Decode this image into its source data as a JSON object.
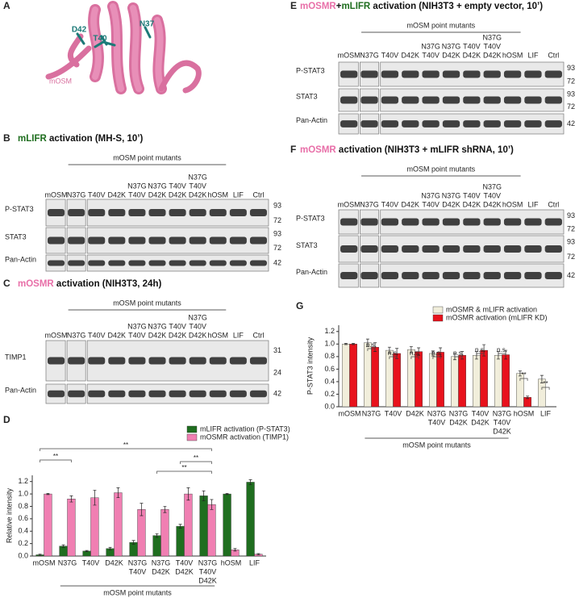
{
  "panel_labels": [
    "A",
    "B",
    "C",
    "D",
    "E",
    "F",
    "G"
  ],
  "structure": {
    "residues": [
      "D42",
      "T40",
      "N37"
    ],
    "protein": "mOSM"
  },
  "blots": [
    {
      "title": [
        {
          "text": "mLIFR",
          "color": "#1f6e1f"
        },
        {
          "text": " activation (MH-S, 10’)"
        }
      ],
      "group_label": "mOSM point mutants",
      "lanes": [
        [
          "mOSM"
        ],
        [
          "N37G"
        ],
        [
          "T40V"
        ],
        [
          "D42K"
        ],
        [
          "N37G",
          "T40V"
        ],
        [
          "N37G",
          "D42K"
        ],
        [
          "T40V",
          "D42K"
        ],
        [
          "N37G",
          "T40V",
          "D42K"
        ],
        [
          "hOSM"
        ],
        [
          "LIF"
        ],
        [
          "Ctrl"
        ]
      ],
      "rows": [
        {
          "name": "P-STAT3",
          "markers": [
            93,
            72
          ]
        },
        {
          "name": "STAT3",
          "markers": [
            93,
            72
          ]
        },
        {
          "name": "Pan-Actin",
          "markers": [
            42
          ]
        }
      ]
    },
    {
      "title": [
        {
          "text": "mOSMR",
          "color": "#e86fa8"
        },
        {
          "text": " activation (NIH3T3, 24h)"
        }
      ],
      "group_label": "mOSM point mutants",
      "lanes": [
        [
          "mOSM"
        ],
        [
          "N37G"
        ],
        [
          "T40V"
        ],
        [
          "D42K"
        ],
        [
          "N37G",
          "T40V"
        ],
        [
          "N37G",
          "D42K"
        ],
        [
          "T40V",
          "D42K"
        ],
        [
          "N37G",
          "T40V",
          "D42K"
        ],
        [
          "hOSM"
        ],
        [
          "LIF"
        ],
        [
          "Ctrl"
        ]
      ],
      "rows": [
        {
          "name": "TIMP1",
          "markers": [
            31,
            24
          ]
        },
        {
          "name": "Pan-Actin",
          "markers": [
            42
          ]
        }
      ]
    },
    {
      "title": [
        {
          "text": "mOSMR",
          "color": "#e86fa8"
        },
        {
          "text": "+"
        },
        {
          "text": "mLIFR",
          "color": "#1f6e1f"
        },
        {
          "text": " activation (NIH3T3 + empty vector, 10’)"
        }
      ],
      "group_label": "mOSM point mutants",
      "lanes": [
        [
          "mOSM"
        ],
        [
          "N37G"
        ],
        [
          "T40V"
        ],
        [
          "D42K"
        ],
        [
          "N37G",
          "T40V"
        ],
        [
          "N37G",
          "D42K"
        ],
        [
          "T40V",
          "D42K"
        ],
        [
          "N37G",
          "T40V",
          "D42K"
        ],
        [
          "hOSM"
        ],
        [
          "LIF"
        ],
        [
          "Ctrl"
        ]
      ],
      "rows": [
        {
          "name": "P-STAT3",
          "markers": [
            93,
            72
          ]
        },
        {
          "name": "STAT3",
          "markers": [
            93,
            72
          ]
        },
        {
          "name": "Pan-Actin",
          "markers": [
            42
          ]
        }
      ]
    },
    {
      "title": [
        {
          "text": "mOSMR",
          "color": "#e86fa8"
        },
        {
          "text": " activation (NIH3T3 + mLIFR shRNA, 10’)"
        }
      ],
      "group_label": "mOSM point mutants",
      "lanes": [
        [
          "mOSM"
        ],
        [
          "N37G"
        ],
        [
          "T40V"
        ],
        [
          "D42K"
        ],
        [
          "N37G",
          "T40V"
        ],
        [
          "N37G",
          "D42K"
        ],
        [
          "T40V",
          "D42K"
        ],
        [
          "N37G",
          "T40V",
          "D42K"
        ],
        [
          "hOSM"
        ],
        [
          "LIF"
        ],
        [
          "Ctrl"
        ]
      ],
      "rows": [
        {
          "name": "P-STAT3",
          "markers": [
            93,
            72
          ]
        },
        {
          "name": "STAT3",
          "markers": [
            93,
            72
          ]
        },
        {
          "name": "Pan-Actin",
          "markers": [
            42
          ]
        }
      ]
    }
  ],
  "chart_data": [
    {
      "type": "bar",
      "ylabel": "Relative intensity",
      "xlabel": "mOSM point mutants",
      "categories": [
        [
          "mOSM"
        ],
        [
          "N37G"
        ],
        [
          "T40V"
        ],
        [
          "D42K"
        ],
        [
          "N37G",
          "T40V"
        ],
        [
          "N37G",
          "D42K"
        ],
        [
          "T40V",
          "D42K"
        ],
        [
          "N37G",
          "T40V",
          "D42K"
        ],
        [
          "hOSM"
        ],
        [
          "LIF"
        ]
      ],
      "series": [
        {
          "name": "mLIFR activation (P-STAT3)",
          "color": "#1f6e1f",
          "values": [
            0.02,
            0.16,
            0.08,
            0.12,
            0.22,
            0.33,
            0.48,
            0.97,
            1.0,
            1.19
          ],
          "errors": [
            0.01,
            0.02,
            0.01,
            0.02,
            0.03,
            0.03,
            0.03,
            0.08,
            0.01,
            0.04
          ]
        },
        {
          "name": "mOSMR activation (TIMP1)",
          "color": "#f07fb2",
          "values": [
            1.0,
            0.92,
            0.94,
            1.02,
            0.75,
            0.75,
            1.0,
            0.83,
            0.1,
            0.03
          ],
          "errors": [
            0.01,
            0.05,
            0.12,
            0.08,
            0.1,
            0.05,
            0.1,
            0.08,
            0.02,
            0.01
          ]
        }
      ],
      "ylim": [
        0,
        1.3
      ],
      "yticks": [
        {
          "value": 0,
          "label": "0.0"
        },
        {
          "value": 0.2,
          "label": "0.2"
        },
        {
          "value": 0.4,
          "label": "0.4"
        },
        {
          "value": 0.6,
          "label": "0.6"
        },
        {
          "value": 0.8,
          "label": "0.8"
        },
        {
          "value": 1,
          "label": "1.0"
        },
        {
          "value": 1.2,
          "label": "1.2"
        }
      ],
      "annotations": [
        "**",
        "**",
        "**",
        "**"
      ]
    },
    {
      "type": "bar",
      "ylabel": "P-STAT3 intensity",
      "xlabel": "mOSM point mutants",
      "categories": [
        [
          "mOSM"
        ],
        [
          "N37G"
        ],
        [
          "T40V"
        ],
        [
          "D42K"
        ],
        [
          "N37G",
          "T40V"
        ],
        [
          "N37G",
          "D42K"
        ],
        [
          "T40V",
          "D42K"
        ],
        [
          "N37G",
          "T40V",
          "D42K"
        ],
        [
          "hOSM"
        ],
        [
          "LIF"
        ]
      ],
      "series": [
        {
          "name": "mOSMR & mLIFR activation",
          "color": "#f1eedb",
          "values": [
            1.0,
            1.02,
            0.9,
            0.91,
            0.85,
            0.8,
            0.82,
            0.82,
            0.53,
            0.44
          ],
          "errors": [
            0.01,
            0.06,
            0.05,
            0.05,
            0.04,
            0.05,
            0.06,
            0.06,
            0.04,
            0.06
          ]
        },
        {
          "name": "mOSMR activation (mLIFR KD)",
          "color": "#e8121c",
          "values": [
            1.0,
            0.95,
            0.85,
            0.88,
            0.87,
            0.82,
            0.9,
            0.83,
            0.15,
            null
          ],
          "errors": [
            0.01,
            0.07,
            0.08,
            0.06,
            0.07,
            0.06,
            0.09,
            0.07,
            0.02,
            null
          ]
        }
      ],
      "ylim": [
        0,
        1.3
      ],
      "yticks": [
        {
          "value": 0,
          "label": "0.0"
        },
        {
          "value": 0.2,
          "label": "0.2"
        },
        {
          "value": 0.4,
          "label": "0.4"
        },
        {
          "value": 0.6,
          "label": "0.6"
        },
        {
          "value": 0.8,
          "label": "0.8"
        },
        {
          "value": 1,
          "label": "1.0"
        },
        {
          "value": 1.2,
          "label": "1.2"
        }
      ],
      "annotations": [
        "n.s.",
        "n.s.",
        "n.s.",
        "n.s.",
        "n.s.",
        "n.s.",
        "n.s.",
        "**",
        "**"
      ]
    }
  ]
}
